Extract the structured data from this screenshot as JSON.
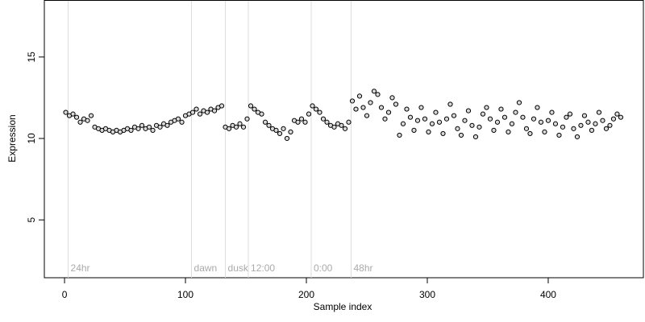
{
  "chart_data": {
    "type": "scatter",
    "xlabel": "Sample index",
    "ylabel": "Expression",
    "xlim": [
      -16.7,
      478.7
    ],
    "ylim": [
      1.45,
      18.5
    ],
    "xticks": [
      0,
      100,
      200,
      300,
      400
    ],
    "yticks": [
      5,
      10,
      15
    ],
    "grid": false,
    "markers": [
      {
        "x": 3,
        "label": "24hr"
      },
      {
        "x": 105,
        "label": "dawn"
      },
      {
        "x": 133,
        "label": "dusk"
      },
      {
        "x": 152,
        "label": "12:00"
      },
      {
        "x": 204,
        "label": "0:00"
      },
      {
        "x": 237,
        "label": "48hr"
      }
    ],
    "marker_color": "#dddddd",
    "series": [
      {
        "name": "Expression",
        "color": "#d9d9d9",
        "x": [
          1,
          4,
          7,
          10,
          13,
          16,
          19,
          22,
          25,
          28,
          31,
          34,
          37,
          40,
          43,
          46,
          49,
          52,
          55,
          58,
          61,
          64,
          67,
          70,
          73,
          76,
          79,
          82,
          85,
          88,
          91,
          94,
          97,
          100,
          103,
          106,
          109,
          112,
          115,
          118,
          121,
          124,
          127,
          130,
          133,
          136,
          139,
          142,
          145,
          148,
          151,
          154,
          157,
          160,
          163,
          166,
          169,
          172,
          175,
          178,
          181,
          184,
          187,
          190,
          193,
          196,
          199,
          202,
          205,
          208,
          211,
          214,
          217,
          220,
          223,
          226,
          229,
          232,
          235,
          238,
          241,
          244,
          247,
          250,
          253,
          256,
          259,
          262,
          265,
          268,
          271,
          274,
          277,
          280,
          283,
          286,
          289,
          292,
          295,
          298,
          301,
          304,
          307,
          310,
          313,
          316,
          319,
          322,
          325,
          328,
          331,
          334,
          337,
          340,
          343,
          346,
          349,
          352,
          355,
          358,
          361,
          364,
          367,
          370,
          373,
          376,
          379,
          382,
          385,
          388,
          391,
          394,
          397,
          400,
          403,
          406,
          409,
          412,
          415,
          418,
          421,
          424,
          427,
          430,
          433,
          436,
          439,
          442,
          445,
          448,
          451,
          454,
          457,
          460
        ],
        "values": [
          11.6,
          11.4,
          11.5,
          11.3,
          11.0,
          11.2,
          11.1,
          11.4,
          10.7,
          10.6,
          10.5,
          10.6,
          10.5,
          10.4,
          10.5,
          10.4,
          10.5,
          10.6,
          10.5,
          10.7,
          10.6,
          10.8,
          10.6,
          10.7,
          10.5,
          10.8,
          10.7,
          10.9,
          10.8,
          11.0,
          11.1,
          11.2,
          11.0,
          11.4,
          11.5,
          11.6,
          11.8,
          11.5,
          11.7,
          11.6,
          11.8,
          11.7,
          11.9,
          12.0,
          10.7,
          10.6,
          10.8,
          10.7,
          10.9,
          10.7,
          11.2,
          12.0,
          11.8,
          11.6,
          11.5,
          11.0,
          10.8,
          10.6,
          10.5,
          10.3,
          10.6,
          10.0,
          10.4,
          11.1,
          11.0,
          11.2,
          11.0,
          11.5,
          12.0,
          11.8,
          11.6,
          11.2,
          11.0,
          10.8,
          10.7,
          10.9,
          10.8,
          10.6,
          11.0,
          12.3,
          11.8,
          12.6,
          11.9,
          11.4,
          12.2,
          12.9,
          12.7,
          11.9,
          11.2,
          11.6,
          12.5,
          12.1,
          10.2,
          10.9,
          11.8,
          11.3,
          10.5,
          11.1,
          11.9,
          11.2,
          10.4,
          10.9,
          11.6,
          11.0,
          10.3,
          11.2,
          12.1,
          11.4,
          10.6,
          10.2,
          11.1,
          11.7,
          10.8,
          10.1,
          10.7,
          11.5,
          11.9,
          11.2,
          10.5,
          11.0,
          11.8,
          11.3,
          10.4,
          10.9,
          11.6,
          12.2,
          11.3,
          10.6,
          10.3,
          11.2,
          11.9,
          11.0,
          10.4,
          11.1,
          11.6,
          10.9,
          10.2,
          10.7,
          11.3,
          11.5,
          10.6,
          10.1,
          10.8,
          11.4,
          11.0,
          10.5,
          10.9,
          11.6,
          11.1,
          10.6,
          10.8,
          11.2,
          11.5,
          11.3
        ]
      }
    ]
  }
}
